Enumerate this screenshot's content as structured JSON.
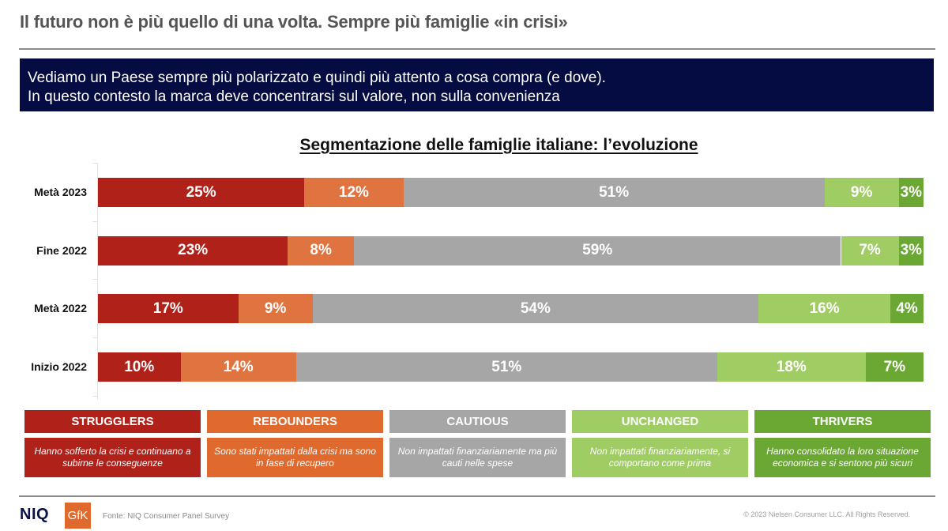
{
  "header": {
    "title": "Il futuro non è più quello di una volta. Sempre più famiglie «in crisi»"
  },
  "banner": {
    "line1": "Vediamo un Paese sempre più polarizzato e quindi più attento a cosa compra (e dove).",
    "line2": "In questo contesto la marca deve concentrarsi sul valore, non sulla convenienza"
  },
  "chart_data": {
    "type": "bar",
    "orientation": "horizontal",
    "stacked": true,
    "title": "Segmentazione delle famiglie italiane: l’evoluzione",
    "xlabel": "",
    "ylabel": "",
    "xlim": [
      0,
      100
    ],
    "grid": false,
    "legend_position": "bottom",
    "categories": [
      "Metà 2023",
      "Fine 2022",
      "Metà 2022",
      "Inizio 2022"
    ],
    "series": [
      {
        "name": "STRUGGLERS",
        "color": "#b0211a",
        "values": [
          25,
          23,
          17,
          10
        ]
      },
      {
        "name": "REBOUNDERS",
        "color": "#e07440",
        "values": [
          12,
          8,
          9,
          14
        ]
      },
      {
        "name": "CAUTIOUS",
        "color": "#a6a6a6",
        "values": [
          51,
          59,
          54,
          51
        ]
      },
      {
        "name": "UNCHANGED",
        "color": "#a0cd63",
        "values": [
          9,
          7,
          16,
          18
        ]
      },
      {
        "name": "THRIVERS",
        "color": "#6ba833",
        "values": [
          3,
          3,
          4,
          7
        ]
      }
    ],
    "value_suffix": "%"
  },
  "legend": [
    {
      "label": "STRUGGLERS",
      "description": "Hanno sofferto la crisi e continuano a subirne le conseguenze",
      "color": "#b0211a"
    },
    {
      "label": "REBOUNDERS",
      "description": "Sono stati impattati dalla crisi ma sono in fase di recupero",
      "color": "#e06a2e"
    },
    {
      "label": "CAUTIOUS",
      "description": "Non impattati finanziariamente ma più cauti nelle spese",
      "color": "#a6a6a6"
    },
    {
      "label": "UNCHANGED",
      "description": "Non impattati finanziariamente, si comportano come prima",
      "color": "#a0cd63"
    },
    {
      "label": "THRIVERS",
      "description": "Hanno consolidato la loro situazione economica e si sentono più sicuri",
      "color": "#6ba833"
    }
  ],
  "footer": {
    "logo_niq": "NIQ",
    "logo_gfk": "GfK",
    "source": "Fonte: NIQ Consumer Panel Survey",
    "copyright": "© 2023 Nielsen Consumer LLC. All Rights Reserved."
  }
}
